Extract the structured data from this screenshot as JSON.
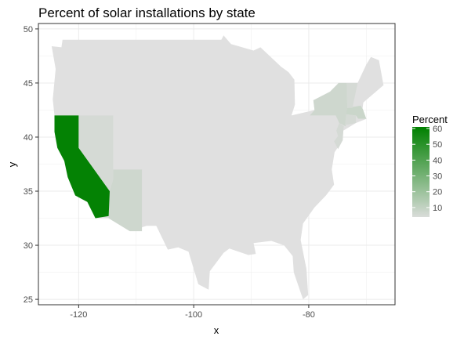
{
  "chart_data": {
    "type": "map",
    "title": "Percent of solar installations by state",
    "xlabel": "x",
    "ylabel": "y",
    "xlim": [
      -127,
      -65
    ],
    "ylim": [
      24.5,
      50.5
    ],
    "x_ticks": [
      -120,
      -100,
      -80
    ],
    "y_ticks": [
      25,
      30,
      35,
      40,
      45,
      50
    ],
    "grid": true,
    "legend": {
      "title": "Percent",
      "position": "right",
      "range": [
        4,
        61
      ],
      "ticks": [
        10,
        20,
        30,
        40,
        50,
        60
      ],
      "colors": {
        "low": "#d9dcd9",
        "high": "#008000"
      }
    },
    "base_color": "#e0e0e0",
    "states": [
      {
        "name": "California",
        "value": 60
      },
      {
        "name": "Arizona",
        "value": 7
      },
      {
        "name": "Nevada",
        "value": 5
      },
      {
        "name": "New York",
        "value": 7
      },
      {
        "name": "Massachusetts",
        "value": 8
      },
      {
        "name": "New Jersey",
        "value": 5
      },
      {
        "name": "Vermont",
        "value": 5
      },
      {
        "name": "Connecticut",
        "value": 5
      }
    ]
  }
}
